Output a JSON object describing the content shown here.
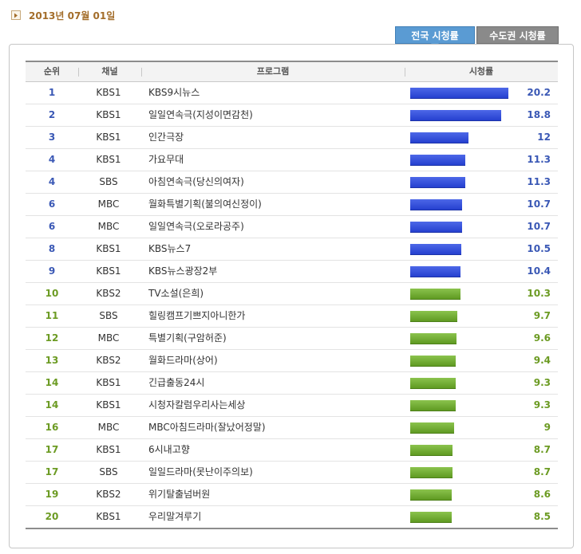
{
  "header": {
    "date": "2013년 07월 01일",
    "date_icon": "arrow-right-icon"
  },
  "tabs": [
    {
      "label": "전국 시청률",
      "active": true
    },
    {
      "label": "수도권 시청률",
      "active": false
    }
  ],
  "table": {
    "columns": [
      "순위",
      "채널",
      "프로그램",
      "시청률"
    ],
    "max_rating": 20.2,
    "colors": {
      "top": "#2f4ad8",
      "rest": "#73ad2f"
    },
    "rows": [
      {
        "rank": "1",
        "channel": "KBS1",
        "program": "KBS9시뉴스",
        "rating": "20.2",
        "tier": "blue"
      },
      {
        "rank": "2",
        "channel": "KBS1",
        "program": "일일연속극(지성이면감천)",
        "rating": "18.8",
        "tier": "blue"
      },
      {
        "rank": "3",
        "channel": "KBS1",
        "program": "인간극장",
        "rating": "12",
        "tier": "blue"
      },
      {
        "rank": "4",
        "channel": "KBS1",
        "program": "가요무대",
        "rating": "11.3",
        "tier": "blue"
      },
      {
        "rank": "4",
        "channel": "SBS",
        "program": "아침연속극(당신의여자)",
        "rating": "11.3",
        "tier": "blue"
      },
      {
        "rank": "6",
        "channel": "MBC",
        "program": "월화특별기획(불의여신정이)",
        "rating": "10.7",
        "tier": "blue"
      },
      {
        "rank": "6",
        "channel": "MBC",
        "program": "일일연속극(오로라공주)",
        "rating": "10.7",
        "tier": "blue"
      },
      {
        "rank": "8",
        "channel": "KBS1",
        "program": "KBS뉴스7",
        "rating": "10.5",
        "tier": "blue"
      },
      {
        "rank": "9",
        "channel": "KBS1",
        "program": "KBS뉴스광장2부",
        "rating": "10.4",
        "tier": "blue"
      },
      {
        "rank": "10",
        "channel": "KBS2",
        "program": "TV소설(은희)",
        "rating": "10.3",
        "tier": "green"
      },
      {
        "rank": "11",
        "channel": "SBS",
        "program": "힐링캠프기쁘지아니한가",
        "rating": "9.7",
        "tier": "green"
      },
      {
        "rank": "12",
        "channel": "MBC",
        "program": "특별기획(구암허준)",
        "rating": "9.6",
        "tier": "green"
      },
      {
        "rank": "13",
        "channel": "KBS2",
        "program": "월화드라마(상어)",
        "rating": "9.4",
        "tier": "green"
      },
      {
        "rank": "14",
        "channel": "KBS1",
        "program": "긴급출동24시",
        "rating": "9.3",
        "tier": "green"
      },
      {
        "rank": "14",
        "channel": "KBS1",
        "program": "시청자칼럼우리사는세상",
        "rating": "9.3",
        "tier": "green"
      },
      {
        "rank": "16",
        "channel": "MBC",
        "program": "MBC아침드라마(잘났어정말)",
        "rating": "9",
        "tier": "green"
      },
      {
        "rank": "17",
        "channel": "KBS1",
        "program": "6시내고향",
        "rating": "8.7",
        "tier": "green"
      },
      {
        "rank": "17",
        "channel": "SBS",
        "program": "일일드라마(못난이주의보)",
        "rating": "8.7",
        "tier": "green"
      },
      {
        "rank": "19",
        "channel": "KBS2",
        "program": "위기탈출넘버원",
        "rating": "8.6",
        "tier": "green"
      },
      {
        "rank": "20",
        "channel": "KBS1",
        "program": "우리말겨루기",
        "rating": "8.5",
        "tier": "green"
      }
    ]
  }
}
